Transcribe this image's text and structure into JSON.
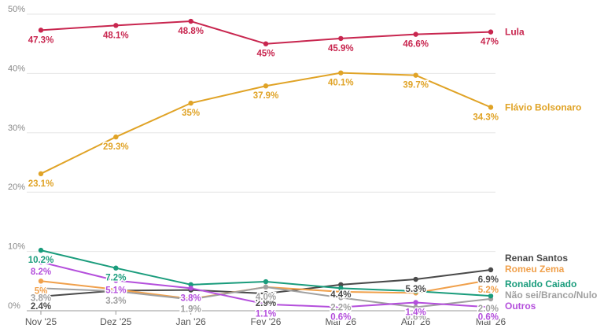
{
  "chart_data": {
    "type": "line",
    "x": [
      "Nov '25",
      "Dez '25",
      "Jan '26",
      "Fev '26",
      "Mar '26",
      "Abr '26",
      "Mai '26"
    ],
    "y_ticks": [
      "0%",
      "10%",
      "20%",
      "30%",
      "40%",
      "50%"
    ],
    "ylim": [
      0,
      50
    ],
    "grid": true,
    "legend": "right (labels at line ends)",
    "series": [
      {
        "name": "Lula",
        "color": "#c8264f",
        "values": [
          47.3,
          48.1,
          48.8,
          45,
          45.9,
          46.6,
          47
        ],
        "labels": [
          "47.3%",
          "48.1%",
          "48.8%",
          "45%",
          "45.9%",
          "46.6%",
          "47%"
        ]
      },
      {
        "name": "Flávio Bolsonaro",
        "color": "#e0a326",
        "values": [
          23.1,
          29.3,
          35,
          37.9,
          40.1,
          39.7,
          34.3
        ],
        "labels": [
          "23.1%",
          "29.3%",
          "35%",
          "37.9%",
          "40.1%",
          "39.7%",
          "34.3%"
        ]
      },
      {
        "name": "Renan Santos",
        "color": "#4a4a4a",
        "values": [
          2.4,
          3.4,
          3.5,
          2.9,
          4.4,
          5.3,
          6.9
        ],
        "labels": [
          "2.4%",
          "",
          "",
          "2.9%",
          "4.4%",
          "5.3%",
          "6.9%"
        ]
      },
      {
        "name": "Romeu Zema",
        "color": "#f0a04b",
        "values": [
          5,
          3.6,
          2.0,
          4.0,
          3.2,
          3.0,
          5.2
        ],
        "labels": [
          "5%",
          "",
          "2.0%",
          "",
          "",
          "",
          "5.2%"
        ]
      },
      {
        "name": "Não sei/Branco/Nulo",
        "color": "#a0a0a0",
        "values": [
          3.8,
          3.3,
          1.9,
          4.0,
          2.2,
          0.6,
          2.0
        ],
        "labels": [
          "3.8%",
          "3.3%",
          "1.9%",
          "4.0%",
          "2.2%",
          "0.6%",
          "2.0%"
        ]
      },
      {
        "name": "Ronaldo Caiado",
        "color": "#1a9c7c",
        "values": [
          10.2,
          7.2,
          4.4,
          4.9,
          3.8,
          3.3,
          2.5
        ],
        "labels": [
          "10.2%",
          "7.2%",
          "",
          "",
          "",
          "",
          ""
        ]
      },
      {
        "name": "Outros",
        "color": "#b44fdc",
        "values": [
          8.2,
          5.1,
          3.8,
          1.1,
          0.6,
          1.4,
          0.6
        ],
        "labels": [
          "8.2%",
          "5.1%",
          "3.8%",
          "1.1%",
          "0.6%",
          "1.4%",
          "0.6%"
        ]
      }
    ]
  }
}
